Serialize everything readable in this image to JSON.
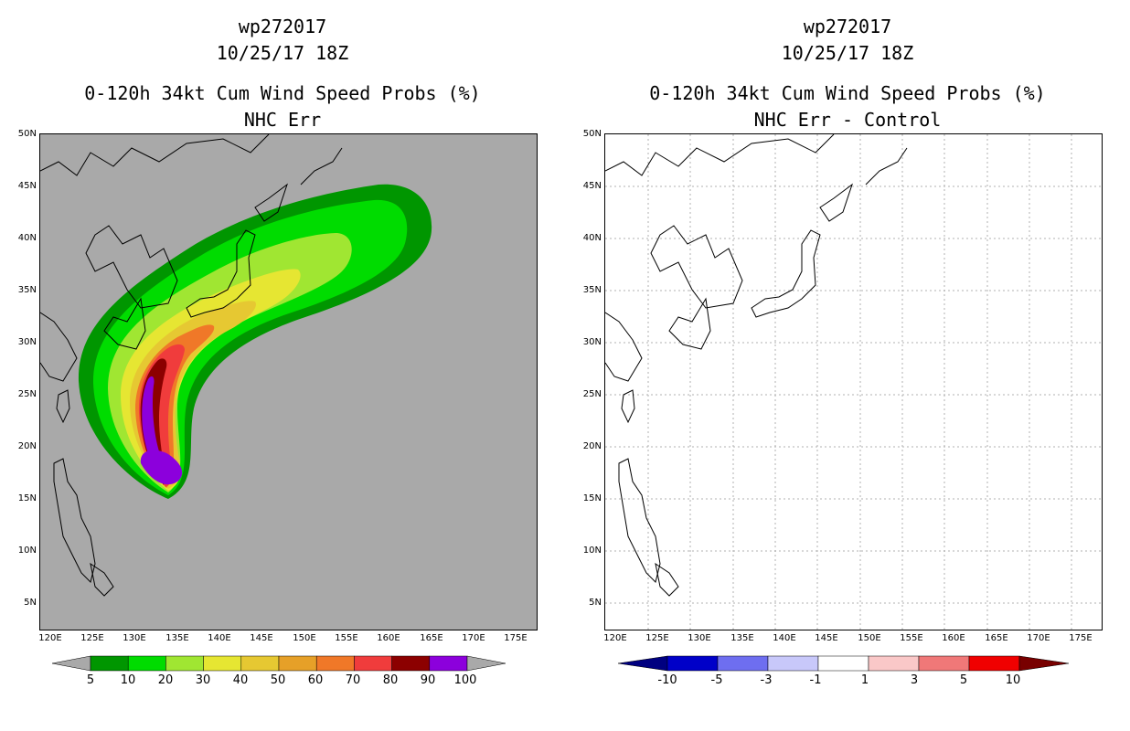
{
  "panels": [
    {
      "storm_id": "wp272017",
      "datetime": "10/25/17 18Z",
      "title": "0-120h 34kt Cum Wind Speed Probs (%)",
      "subtitle": "NHC Err",
      "background_color": "#a9a9a9",
      "colorbar": {
        "labels": [
          "5",
          "10",
          "20",
          "30",
          "40",
          "50",
          "60",
          "70",
          "80",
          "90",
          "100"
        ],
        "colors": [
          "#009600",
          "#00dc00",
          "#a0e632",
          "#e6e632",
          "#e6c832",
          "#e6a028",
          "#f07828",
          "#f03c3c",
          "#8c0000",
          "#8c00dc"
        ]
      }
    },
    {
      "storm_id": "wp272017",
      "datetime": "10/25/17 18Z",
      "title": "0-120h 34kt Cum Wind Speed Probs (%)",
      "subtitle": "NHC Err - Control",
      "background_color": "#ffffff",
      "colorbar": {
        "labels": [
          "-10",
          "-5",
          "-3",
          "-1",
          "1",
          "3",
          "5",
          "10"
        ],
        "colors": [
          "#0000c8",
          "#6e6ef0",
          "#c8c8fa",
          "#ffffff",
          "#fac8c8",
          "#f07878",
          "#f00000"
        ]
      }
    }
  ],
  "axes": {
    "lat_labels": [
      "50N",
      "45N",
      "40N",
      "35N",
      "30N",
      "25N",
      "20N",
      "15N",
      "10N",
      "5N"
    ],
    "lon_labels": [
      "120E",
      "125E",
      "130E",
      "135E",
      "140E",
      "145E",
      "150E",
      "155E",
      "160E",
      "165E",
      "170E",
      "175E"
    ]
  }
}
